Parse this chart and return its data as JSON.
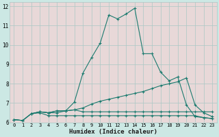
{
  "xlabel": "Humidex (Indice chaleur)",
  "bg_color": "#cce8e4",
  "plot_bg_color": "#e8d8d8",
  "line_color": "#1a7a6e",
  "major_grid_color": "#aac8c4",
  "xlim": [
    -0.5,
    23.5
  ],
  "ylim": [
    6.0,
    12.2
  ],
  "xticks": [
    0,
    1,
    2,
    3,
    4,
    5,
    6,
    7,
    8,
    9,
    10,
    11,
    12,
    13,
    14,
    15,
    16,
    17,
    18,
    19,
    20,
    21,
    22,
    23
  ],
  "yticks": [
    6,
    7,
    8,
    9,
    10,
    11,
    12
  ],
  "line1_x": [
    0,
    1,
    2,
    3,
    4,
    5,
    6,
    7,
    8,
    9,
    10,
    11,
    12,
    13,
    14,
    15,
    16,
    17,
    18,
    19,
    20,
    21,
    22,
    23
  ],
  "line1_y": [
    6.15,
    6.1,
    6.45,
    6.5,
    6.35,
    6.35,
    6.35,
    6.35,
    6.35,
    6.35,
    6.35,
    6.35,
    6.35,
    6.35,
    6.35,
    6.35,
    6.35,
    6.35,
    6.35,
    6.35,
    6.35,
    6.35,
    6.25,
    6.2
  ],
  "line2_x": [
    0,
    1,
    2,
    3,
    4,
    5,
    6,
    7,
    8,
    9,
    10,
    11,
    12,
    13,
    14,
    15,
    16,
    17,
    18,
    19,
    20,
    21,
    22,
    23
  ],
  "line2_y": [
    6.15,
    6.1,
    6.45,
    6.55,
    6.5,
    6.5,
    6.6,
    6.65,
    6.75,
    6.95,
    7.1,
    7.2,
    7.3,
    7.4,
    7.5,
    7.6,
    7.75,
    7.9,
    8.0,
    8.1,
    8.3,
    6.9,
    6.5,
    6.3
  ],
  "line3_x": [
    2,
    3,
    4,
    5,
    6,
    7,
    8,
    9,
    10,
    11,
    12,
    13,
    14,
    15,
    16,
    17,
    18,
    19,
    20,
    21,
    22,
    23
  ],
  "line3_y": [
    6.45,
    6.55,
    6.5,
    6.6,
    6.6,
    6.65,
    6.55,
    6.55,
    6.55,
    6.55,
    6.55,
    6.55,
    6.55,
    6.55,
    6.55,
    6.55,
    6.55,
    6.55,
    6.55,
    6.55,
    6.55,
    6.55
  ],
  "line4_x": [
    0,
    1,
    2,
    3,
    4,
    5,
    6,
    7,
    8,
    9,
    10,
    11,
    12,
    13,
    14,
    15,
    16,
    17,
    18,
    19,
    20,
    21,
    22,
    23
  ],
  "line4_y": [
    6.15,
    6.1,
    6.45,
    6.55,
    6.5,
    6.6,
    6.6,
    7.05,
    8.55,
    9.35,
    10.1,
    11.55,
    11.35,
    11.6,
    11.9,
    9.55,
    9.55,
    8.6,
    8.15,
    8.35,
    6.9,
    6.3,
    6.25,
    6.2
  ]
}
